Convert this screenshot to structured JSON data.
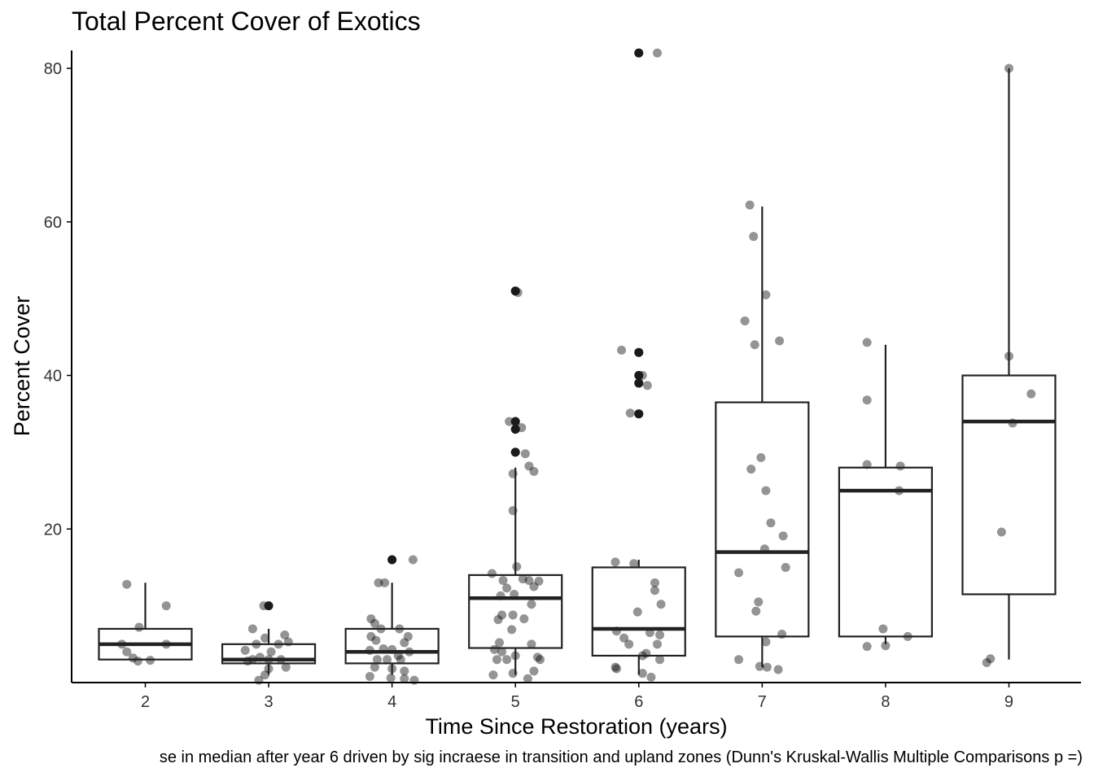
{
  "chart_data": {
    "type": "box",
    "title": "Total Percent Cover of Exotics",
    "xlabel": "Time Since Restoration (years)",
    "ylabel": "Percent Cover",
    "caption": "se in median after year 6 driven by sig incraese in transition and upland zones (Dunn's Kruskal-Wallis Multiple Comparisons p =)",
    "categories": [
      "2",
      "3",
      "4",
      "5",
      "6",
      "7",
      "8",
      "9"
    ],
    "ylim": [
      0,
      82
    ],
    "yticks": [
      20,
      40,
      60,
      80
    ],
    "grid": false,
    "boxes": [
      {
        "category": "2",
        "whisker_low": 3,
        "q1": 3,
        "median": 5,
        "q3": 7,
        "whisker_high": 13,
        "outliers": []
      },
      {
        "category": "3",
        "whisker_low": 1,
        "q1": 2.5,
        "median": 3,
        "q3": 5,
        "whisker_high": 7,
        "outliers": [
          10
        ]
      },
      {
        "category": "4",
        "whisker_low": 1,
        "q1": 2.5,
        "median": 4,
        "q3": 7,
        "whisker_high": 13,
        "outliers": [
          16
        ]
      },
      {
        "category": "5",
        "whisker_low": 1,
        "q1": 4.5,
        "median": 11,
        "q3": 14,
        "whisker_high": 28,
        "outliers": [
          30,
          33,
          34,
          51
        ]
      },
      {
        "category": "6",
        "whisker_low": 1,
        "q1": 3.5,
        "median": 7,
        "q3": 15,
        "whisker_high": 16,
        "outliers": [
          35,
          39,
          40,
          43,
          82
        ]
      },
      {
        "category": "7",
        "whisker_low": 2,
        "q1": 6,
        "median": 17,
        "q3": 36.5,
        "whisker_high": 62,
        "outliers": []
      },
      {
        "category": "8",
        "whisker_low": 5,
        "q1": 6,
        "median": 25,
        "q3": 28,
        "whisker_high": 44,
        "outliers": []
      },
      {
        "category": "9",
        "whisker_low": 3,
        "q1": 11.5,
        "median": 34,
        "q3": 40,
        "whisker_high": 80,
        "outliers": []
      }
    ],
    "jitter_points": [
      {
        "x": 1.85,
        "y": 12.8
      },
      {
        "x": 2.17,
        "y": 10.0
      },
      {
        "x": 1.95,
        "y": 7.2
      },
      {
        "x": 1.81,
        "y": 5.0
      },
      {
        "x": 2.17,
        "y": 5.0
      },
      {
        "x": 1.85,
        "y": 4.0
      },
      {
        "x": 1.9,
        "y": 3.2
      },
      {
        "x": 1.94,
        "y": 2.8
      },
      {
        "x": 2.04,
        "y": 2.9
      },
      {
        "x": 2.96,
        "y": 10.0
      },
      {
        "x": 2.87,
        "y": 7.0
      },
      {
        "x": 3.13,
        "y": 6.2
      },
      {
        "x": 2.97,
        "y": 5.8
      },
      {
        "x": 3.08,
        "y": 5.0
      },
      {
        "x": 3.16,
        "y": 5.3
      },
      {
        "x": 2.9,
        "y": 5.0
      },
      {
        "x": 2.81,
        "y": 4.2
      },
      {
        "x": 3.02,
        "y": 4.0
      },
      {
        "x": 2.87,
        "y": 3.0
      },
      {
        "x": 3.0,
        "y": 3.0
      },
      {
        "x": 3.1,
        "y": 3.0
      },
      {
        "x": 2.83,
        "y": 2.8
      },
      {
        "x": 2.93,
        "y": 3.3
      },
      {
        "x": 3.14,
        "y": 2.0
      },
      {
        "x": 3.0,
        "y": 1.8
      },
      {
        "x": 2.97,
        "y": 1.0
      },
      {
        "x": 2.92,
        "y": 0.3
      },
      {
        "x": 4.0,
        "y": 16.0
      },
      {
        "x": 4.17,
        "y": 16.0
      },
      {
        "x": 3.89,
        "y": 13.0
      },
      {
        "x": 3.94,
        "y": 13.0
      },
      {
        "x": 3.83,
        "y": 8.3
      },
      {
        "x": 3.86,
        "y": 7.7
      },
      {
        "x": 3.91,
        "y": 7.0
      },
      {
        "x": 4.06,
        "y": 7.0
      },
      {
        "x": 3.83,
        "y": 6.0
      },
      {
        "x": 4.13,
        "y": 6.0
      },
      {
        "x": 4.1,
        "y": 5.2
      },
      {
        "x": 3.87,
        "y": 5.5
      },
      {
        "x": 3.93,
        "y": 4.4
      },
      {
        "x": 3.82,
        "y": 4.2
      },
      {
        "x": 4.0,
        "y": 4.3
      },
      {
        "x": 4.05,
        "y": 3.5
      },
      {
        "x": 3.88,
        "y": 3.0
      },
      {
        "x": 3.96,
        "y": 3.0
      },
      {
        "x": 4.07,
        "y": 3.0
      },
      {
        "x": 4.14,
        "y": 4.0
      },
      {
        "x": 3.86,
        "y": 2.0
      },
      {
        "x": 4.0,
        "y": 1.8
      },
      {
        "x": 3.82,
        "y": 0.8
      },
      {
        "x": 3.99,
        "y": 0.6
      },
      {
        "x": 4.1,
        "y": 0.5
      },
      {
        "x": 4.18,
        "y": 0.3
      },
      {
        "x": 4.1,
        "y": 1.5
      },
      {
        "x": 5.0,
        "y": 51.0
      },
      {
        "x": 5.02,
        "y": 50.8
      },
      {
        "x": 4.95,
        "y": 34.0
      },
      {
        "x": 5.0,
        "y": 34.0
      },
      {
        "x": 5.0,
        "y": 33.0
      },
      {
        "x": 5.05,
        "y": 33.2
      },
      {
        "x": 5.0,
        "y": 30.0
      },
      {
        "x": 5.08,
        "y": 29.8
      },
      {
        "x": 5.11,
        "y": 28.2
      },
      {
        "x": 5.15,
        "y": 27.5
      },
      {
        "x": 4.98,
        "y": 27.2
      },
      {
        "x": 4.98,
        "y": 22.4
      },
      {
        "x": 5.01,
        "y": 15.1
      },
      {
        "x": 4.81,
        "y": 14.2
      },
      {
        "x": 4.9,
        "y": 13.3
      },
      {
        "x": 5.06,
        "y": 13.5
      },
      {
        "x": 5.11,
        "y": 13.3
      },
      {
        "x": 5.19,
        "y": 13.2
      },
      {
        "x": 4.93,
        "y": 12.3
      },
      {
        "x": 5.15,
        "y": 12.5
      },
      {
        "x": 4.88,
        "y": 11.3
      },
      {
        "x": 4.99,
        "y": 11.5
      },
      {
        "x": 5.13,
        "y": 10.2
      },
      {
        "x": 4.89,
        "y": 8.8
      },
      {
        "x": 4.98,
        "y": 8.8
      },
      {
        "x": 5.07,
        "y": 8.3
      },
      {
        "x": 4.86,
        "y": 8.2
      },
      {
        "x": 4.97,
        "y": 6.9
      },
      {
        "x": 4.87,
        "y": 5.2
      },
      {
        "x": 5.13,
        "y": 5.0
      },
      {
        "x": 4.83,
        "y": 4.3
      },
      {
        "x": 4.89,
        "y": 4.0
      },
      {
        "x": 5.0,
        "y": 3.5
      },
      {
        "x": 4.85,
        "y": 3.0
      },
      {
        "x": 4.93,
        "y": 3.0
      },
      {
        "x": 5.2,
        "y": 3.0
      },
      {
        "x": 5.18,
        "y": 3.3
      },
      {
        "x": 4.82,
        "y": 1.0
      },
      {
        "x": 4.98,
        "y": 1.2
      },
      {
        "x": 5.15,
        "y": 1.5
      },
      {
        "x": 5.1,
        "y": 0.5
      },
      {
        "x": 6.0,
        "y": 82.0
      },
      {
        "x": 6.15,
        "y": 82.0
      },
      {
        "x": 5.86,
        "y": 43.3
      },
      {
        "x": 6.0,
        "y": 43.0
      },
      {
        "x": 6.0,
        "y": 40.0
      },
      {
        "x": 6.03,
        "y": 40.0
      },
      {
        "x": 6.0,
        "y": 39.0
      },
      {
        "x": 6.07,
        "y": 38.7
      },
      {
        "x": 5.93,
        "y": 35.1
      },
      {
        "x": 6.0,
        "y": 35.0
      },
      {
        "x": 5.81,
        "y": 15.7
      },
      {
        "x": 5.96,
        "y": 15.5
      },
      {
        "x": 6.13,
        "y": 13.0
      },
      {
        "x": 6.13,
        "y": 12.0
      },
      {
        "x": 6.18,
        "y": 10.2
      },
      {
        "x": 5.99,
        "y": 9.2
      },
      {
        "x": 5.82,
        "y": 6.7
      },
      {
        "x": 6.09,
        "y": 6.5
      },
      {
        "x": 6.17,
        "y": 6.2
      },
      {
        "x": 5.88,
        "y": 5.8
      },
      {
        "x": 5.92,
        "y": 5.0
      },
      {
        "x": 6.15,
        "y": 5.0
      },
      {
        "x": 6.06,
        "y": 3.8
      },
      {
        "x": 6.03,
        "y": 3.5
      },
      {
        "x": 6.17,
        "y": 3.0
      },
      {
        "x": 5.81,
        "y": 2.0
      },
      {
        "x": 5.82,
        "y": 1.8
      },
      {
        "x": 6.03,
        "y": 1.2
      },
      {
        "x": 6.1,
        "y": 0.7
      },
      {
        "x": 6.9,
        "y": 62.2
      },
      {
        "x": 6.93,
        "y": 58.1
      },
      {
        "x": 7.03,
        "y": 50.5
      },
      {
        "x": 6.86,
        "y": 47.1
      },
      {
        "x": 7.14,
        "y": 44.5
      },
      {
        "x": 6.94,
        "y": 44.0
      },
      {
        "x": 6.99,
        "y": 29.3
      },
      {
        "x": 6.91,
        "y": 27.8
      },
      {
        "x": 7.03,
        "y": 25.0
      },
      {
        "x": 7.07,
        "y": 20.8
      },
      {
        "x": 7.17,
        "y": 19.1
      },
      {
        "x": 7.02,
        "y": 17.4
      },
      {
        "x": 7.19,
        "y": 15.0
      },
      {
        "x": 6.81,
        "y": 14.3
      },
      {
        "x": 6.97,
        "y": 10.5
      },
      {
        "x": 6.95,
        "y": 9.3
      },
      {
        "x": 7.16,
        "y": 6.3
      },
      {
        "x": 7.03,
        "y": 5.3
      },
      {
        "x": 6.81,
        "y": 3.0
      },
      {
        "x": 6.98,
        "y": 2.1
      },
      {
        "x": 7.04,
        "y": 2.0
      },
      {
        "x": 7.13,
        "y": 1.7
      },
      {
        "x": 7.85,
        "y": 44.3
      },
      {
        "x": 7.85,
        "y": 36.8
      },
      {
        "x": 7.85,
        "y": 28.4
      },
      {
        "x": 8.12,
        "y": 28.2
      },
      {
        "x": 8.11,
        "y": 25.0
      },
      {
        "x": 7.98,
        "y": 7.0
      },
      {
        "x": 8.18,
        "y": 6.0
      },
      {
        "x": 7.85,
        "y": 4.7
      },
      {
        "x": 8.0,
        "y": 4.8
      },
      {
        "x": 9.0,
        "y": 80.0
      },
      {
        "x": 9.0,
        "y": 42.5
      },
      {
        "x": 9.18,
        "y": 37.6
      },
      {
        "x": 9.03,
        "y": 33.8
      },
      {
        "x": 8.94,
        "y": 19.6
      },
      {
        "x": 8.85,
        "y": 3.1
      },
      {
        "x": 8.82,
        "y": 2.6
      }
    ]
  }
}
